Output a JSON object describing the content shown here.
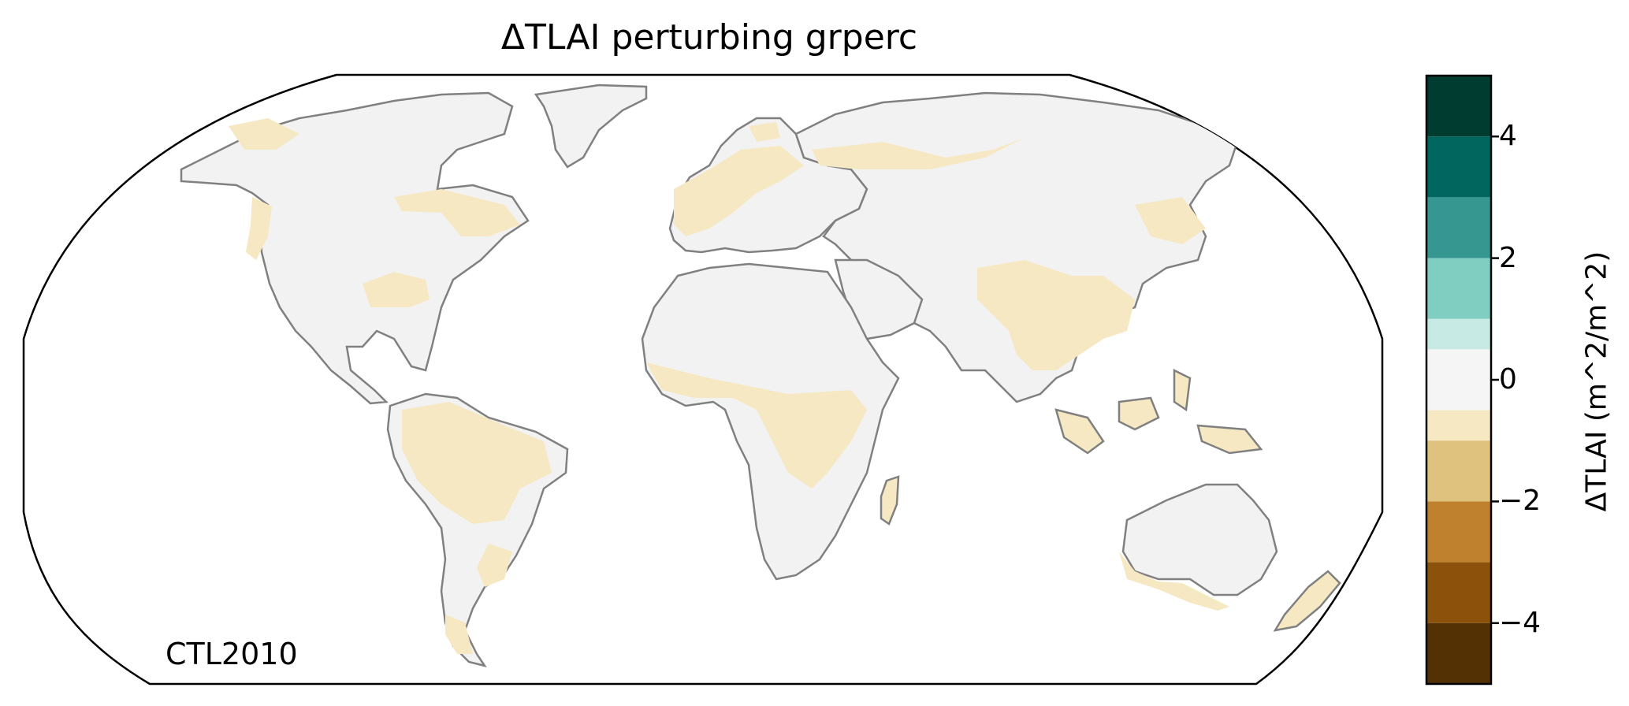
{
  "map": {
    "title": "ΔTLAI perturbing grperc",
    "annotation": "CTL2010",
    "projection": "Robinson",
    "layers": [
      "land-fill",
      "coastlines",
      "country-borders"
    ]
  },
  "colorbar": {
    "label": "ΔTLAI (m^2/m^2)",
    "ticks": [
      {
        "value": 4,
        "label": "4"
      },
      {
        "value": 2,
        "label": "2"
      },
      {
        "value": 0,
        "label": "0"
      },
      {
        "value": -2,
        "label": "−2"
      },
      {
        "value": -4,
        "label": "−4"
      }
    ],
    "range": [
      -5,
      5
    ],
    "bins": [
      {
        "from": 4,
        "to": 5,
        "color": "#003c30"
      },
      {
        "from": 3,
        "to": 4,
        "color": "#01665e"
      },
      {
        "from": 2,
        "to": 3,
        "color": "#35978f"
      },
      {
        "from": 1,
        "to": 2,
        "color": "#80cdc1"
      },
      {
        "from": 0.5,
        "to": 1,
        "color": "#c7eae5"
      },
      {
        "from": -0.5,
        "to": 0.5,
        "color": "#f5f5f5"
      },
      {
        "from": -1,
        "to": -0.5,
        "color": "#f6e8c3"
      },
      {
        "from": -2,
        "to": -1,
        "color": "#dfc27d"
      },
      {
        "from": -3,
        "to": -2,
        "color": "#bf812d"
      },
      {
        "from": -4,
        "to": -3,
        "color": "#8c510a"
      },
      {
        "from": -5,
        "to": -4,
        "color": "#543005"
      }
    ]
  },
  "colors": {
    "no_change": "#f2f2f2",
    "decrease": "#f6e8c3",
    "coastline": "#808080",
    "border": "#c8c8c8"
  }
}
